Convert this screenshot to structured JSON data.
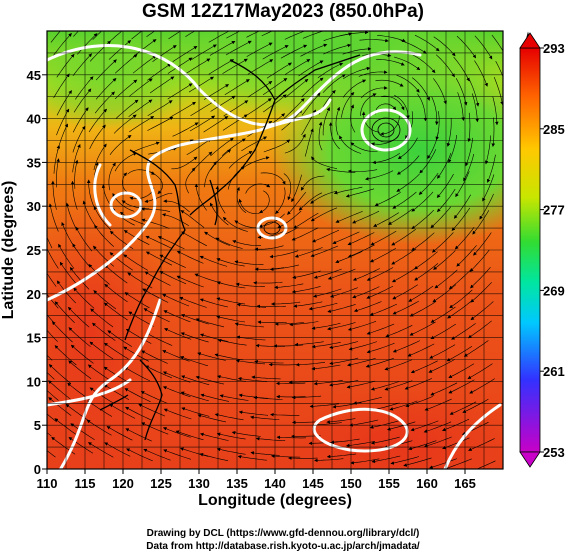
{
  "title": "GSM 12Z17May2023 (850.0hPa)",
  "x_axis": {
    "label": "Longitude (degrees)",
    "ticks": [
      "110",
      "115",
      "120",
      "125",
      "130",
      "135",
      "140",
      "145",
      "150",
      "155",
      "160",
      "165"
    ],
    "range": [
      110,
      170
    ]
  },
  "y_axis": {
    "label": "Latitude  (degrees)",
    "ticks": [
      "0",
      "5",
      "10",
      "15",
      "20",
      "25",
      "30",
      "35",
      "40",
      "45"
    ],
    "range": [
      0,
      50
    ]
  },
  "colorbar": {
    "labels": [
      "293",
      "285",
      "277",
      "269",
      "261",
      "253"
    ],
    "range": [
      253,
      293
    ],
    "colors": [
      "#c800c8",
      "#3232ff",
      "#00c8ff",
      "#00e6a0",
      "#32dc32",
      "#c8e600",
      "#ffc800",
      "#ff6400",
      "#e60000"
    ]
  },
  "footer": {
    "line1": "Drawing by DCL (https://www.gfd-dennou.org/library/dcl/)",
    "line2": "Data from http://database.rish.kyoto-u.ac.jp/arch/jmadata/"
  },
  "map_features": {
    "low_centers": [
      {
        "lon": 154.5,
        "lat": 40.5
      },
      {
        "lon": 137.5,
        "lat": 30.5
      },
      {
        "lon": 121.0,
        "lat": 32.5
      }
    ],
    "field_colors": {
      "warm": "#e62a1c",
      "orange": "#f07a12",
      "yellow": "#e8c60e",
      "green": "#58d22e"
    }
  }
}
